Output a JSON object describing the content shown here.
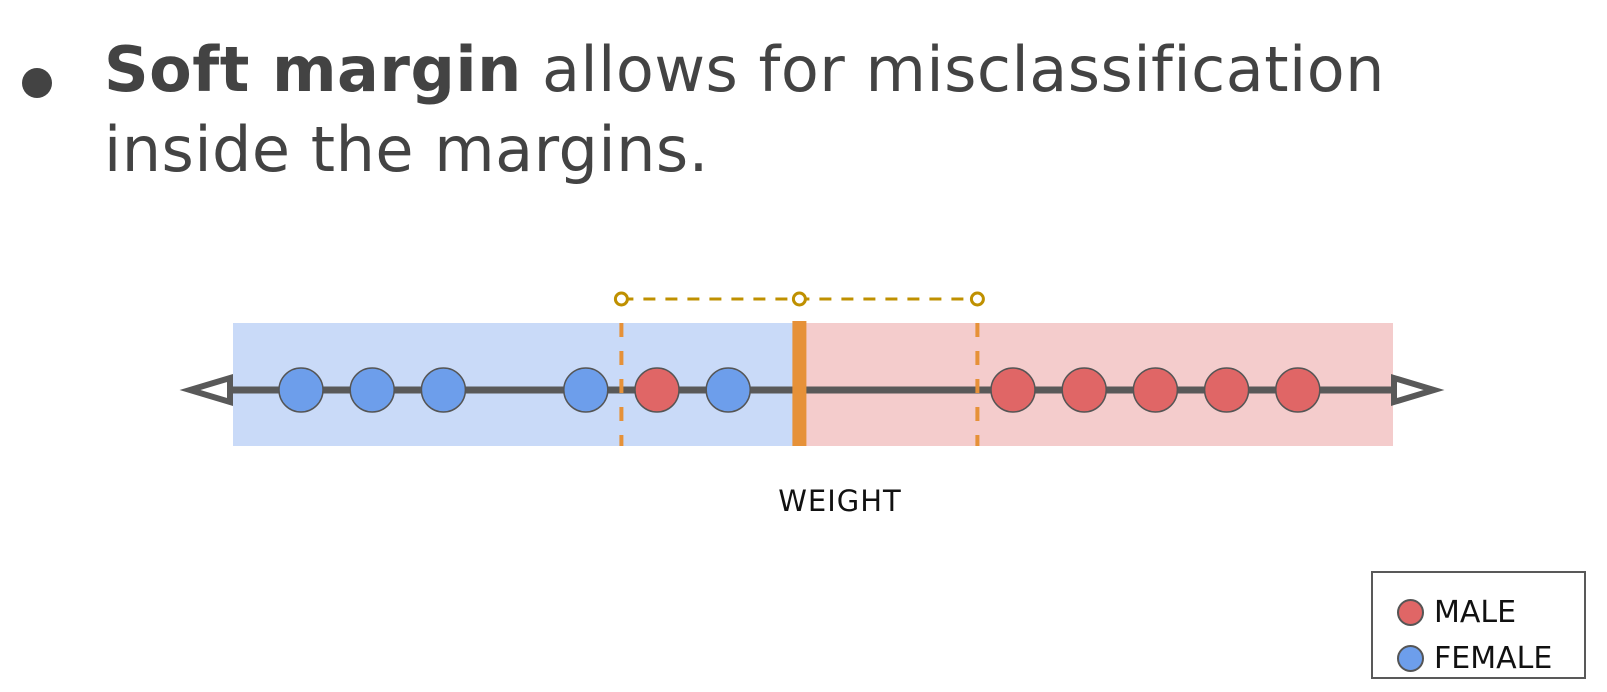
{
  "heading": {
    "bold_text": "Soft margin",
    "text": " allows for misclassification inside the margins."
  },
  "diagram": {
    "axis_label": "WEIGHT",
    "colors": {
      "female": "#6d9eeb",
      "male": "#e06666",
      "female_region": "#c9daf8",
      "male_region": "#f4cccc",
      "threshold": "#e69138",
      "margin_bracket": "#bf9000",
      "axis": "#595959"
    },
    "female_points": [
      1,
      2,
      3,
      5,
      7
    ],
    "male_points": [
      6,
      11,
      12,
      13,
      14,
      15
    ],
    "margin_low": 5.5,
    "threshold": 8,
    "margin_high": 10.5
  },
  "legend": {
    "items": [
      {
        "label": "MALE",
        "color": "#e06666"
      },
      {
        "label": "FEMALE",
        "color": "#6d9eeb"
      }
    ]
  }
}
